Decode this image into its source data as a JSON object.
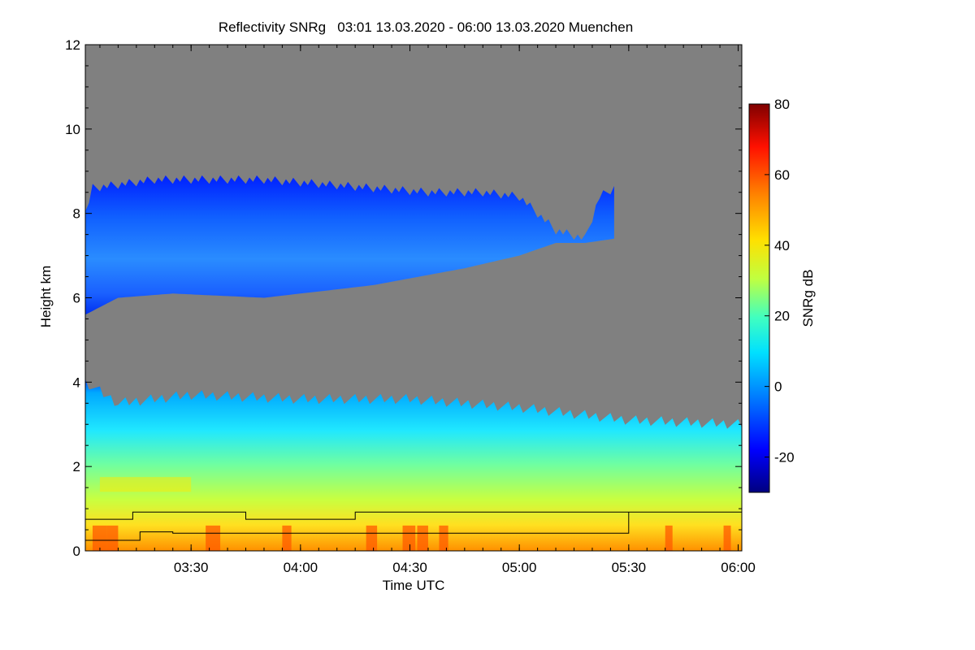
{
  "chart_data": {
    "type": "heatmap",
    "title": "Reflectivity SNRg   03:01 13.03.2020 - 06:00 13.03.2020 Muenchen",
    "xlabel": "Time UTC",
    "ylabel": "Height km",
    "colorbar_label": "SNRg dB",
    "xlim_minutes": [
      181,
      361
    ],
    "ylim_km": [
      0,
      12
    ],
    "x_ticks": [
      {
        "minute": 210,
        "label": "03:30"
      },
      {
        "minute": 240,
        "label": "04:00"
      },
      {
        "minute": 270,
        "label": "04:30"
      },
      {
        "minute": 300,
        "label": "05:00"
      },
      {
        "minute": 330,
        "label": "05:30"
      },
      {
        "minute": 360,
        "label": "06:00"
      }
    ],
    "y_ticks": [
      {
        "value": 0,
        "label": "0"
      },
      {
        "value": 2,
        "label": "2"
      },
      {
        "value": 4,
        "label": "4"
      },
      {
        "value": 6,
        "label": "6"
      },
      {
        "value": 8,
        "label": "8"
      },
      {
        "value": 10,
        "label": "10"
      },
      {
        "value": 12,
        "label": "12"
      }
    ],
    "colorbar_range": [
      -30,
      80
    ],
    "colorbar_ticks": [
      {
        "value": -20,
        "label": "-20"
      },
      {
        "value": 0,
        "label": "0"
      },
      {
        "value": 20,
        "label": "20"
      },
      {
        "value": 40,
        "label": "40"
      },
      {
        "value": 60,
        "label": "60"
      },
      {
        "value": 80,
        "label": "80"
      }
    ],
    "background_color": "#808080",
    "colormap": [
      "#00007f",
      "#0000ff",
      "#0080ff",
      "#00e0ff",
      "#40ffc0",
      "#c0ff40",
      "#ffe000",
      "#ff8000",
      "#ff1000",
      "#7f0000"
    ],
    "upper_cloud_layer": {
      "start_minute": 181,
      "end_minute": 326,
      "top_km": [
        [
          181,
          8.0
        ],
        [
          183,
          8.6
        ],
        [
          200,
          8.8
        ],
        [
          230,
          8.8
        ],
        [
          260,
          8.6
        ],
        [
          275,
          8.5
        ],
        [
          290,
          8.5
        ],
        [
          300,
          8.4
        ],
        [
          310,
          7.6
        ],
        [
          318,
          7.4
        ],
        [
          322,
          8.4
        ],
        [
          326,
          8.6
        ]
      ],
      "base_km": [
        [
          181,
          5.6
        ],
        [
          190,
          6.0
        ],
        [
          205,
          6.1
        ],
        [
          230,
          6.0
        ],
        [
          260,
          6.3
        ],
        [
          285,
          6.7
        ],
        [
          300,
          7.0
        ],
        [
          310,
          7.3
        ],
        [
          318,
          7.3
        ],
        [
          326,
          7.4
        ]
      ],
      "typical_dB": -5
    },
    "lower_precip_layer": {
      "start_minute": 181,
      "end_minute": 361,
      "top_km": [
        [
          181,
          4.0
        ],
        [
          190,
          3.5
        ],
        [
          210,
          3.7
        ],
        [
          240,
          3.6
        ],
        [
          270,
          3.6
        ],
        [
          300,
          3.4
        ],
        [
          330,
          3.1
        ],
        [
          361,
          3.0
        ]
      ],
      "base_km": 0,
      "typical_dB": 25
    },
    "reference_lines": [
      {
        "name": "upper",
        "points_min_km": [
          [
            181,
            0.75
          ],
          [
            194,
            0.75
          ],
          [
            194,
            0.92
          ],
          [
            225,
            0.92
          ],
          [
            225,
            0.75
          ],
          [
            255,
            0.75
          ],
          [
            255,
            0.92
          ],
          [
            361,
            0.92
          ]
        ]
      },
      {
        "name": "lower",
        "points_min_km": [
          [
            181,
            0.25
          ],
          [
            196,
            0.25
          ],
          [
            196,
            0.45
          ],
          [
            205,
            0.45
          ],
          [
            205,
            0.42
          ],
          [
            330,
            0.42
          ],
          [
            330,
            0.92
          ]
        ]
      }
    ]
  }
}
